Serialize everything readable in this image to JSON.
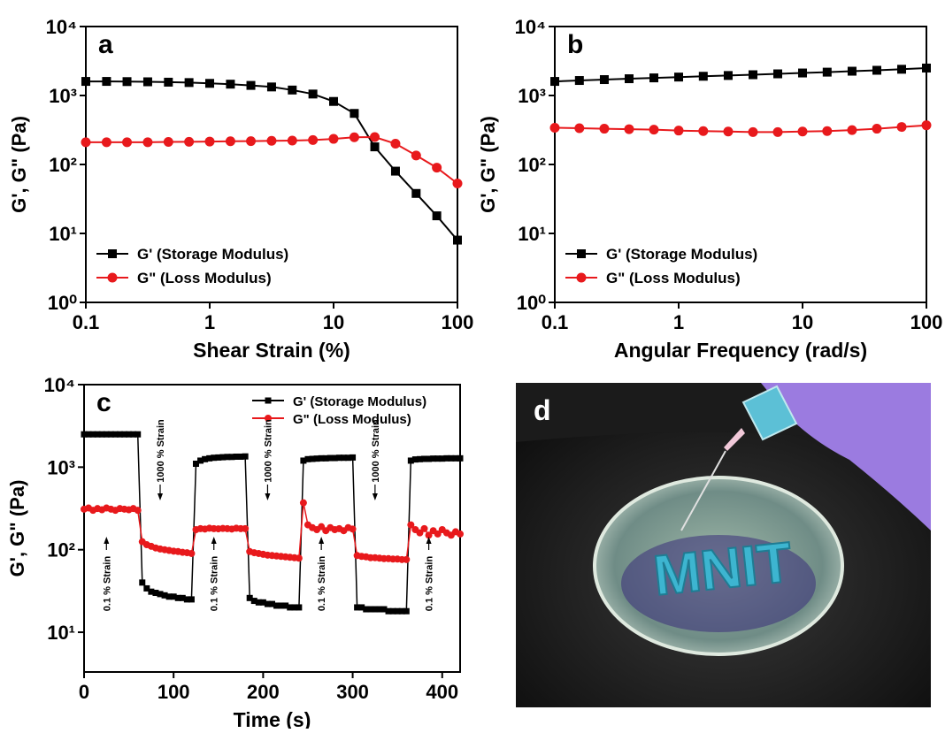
{
  "chart_data": [
    {
      "type": "line",
      "label": "a",
      "xlabel": "Shear Strain (%)",
      "ylabel": "G', G\" (Pa)",
      "xscale": "log",
      "yscale": "log",
      "legend": "lower left",
      "x": [
        0.1,
        0.147,
        0.215,
        0.316,
        0.464,
        0.681,
        1,
        1.47,
        2.15,
        3.16,
        4.64,
        6.81,
        10,
        14.7,
        21.5,
        31.6,
        46.4,
        68.1,
        100
      ],
      "series": [
        {
          "name": "G'  (Storage Modulus)",
          "color": "#000000",
          "marker": "square",
          "values": [
            1600,
            1600,
            1590,
            1580,
            1560,
            1540,
            1500,
            1460,
            1400,
            1330,
            1200,
            1050,
            820,
            550,
            180,
            80,
            38,
            18,
            8
          ]
        },
        {
          "name": "G\" (Loss Modulus)",
          "color": "#e8191c",
          "marker": "circle",
          "values": [
            210,
            210,
            210,
            210,
            212,
            213,
            215,
            217,
            218,
            220,
            222,
            226,
            235,
            248,
            250,
            200,
            135,
            90,
            53
          ]
        }
      ],
      "xlim": [
        0.1,
        100
      ],
      "xticks": [
        0.1,
        1,
        10,
        100
      ],
      "ylim": [
        1,
        10000
      ],
      "yticks": [
        {
          "value": 1,
          "label": "10⁰"
        },
        {
          "value": 10,
          "label": "10¹"
        },
        {
          "value": 100,
          "label": "10²"
        },
        {
          "value": 1000,
          "label": "10³"
        },
        {
          "value": 10000,
          "label": "10⁴"
        }
      ]
    },
    {
      "type": "line",
      "label": "b",
      "xlabel": "Angular Frequency (rad/s)",
      "ylabel": "G', G\" (Pa)",
      "xscale": "log",
      "yscale": "log",
      "legend": "lower left",
      "x": [
        0.1,
        0.158,
        0.251,
        0.398,
        0.631,
        1,
        1.58,
        2.51,
        3.98,
        6.31,
        10,
        15.8,
        25.1,
        39.8,
        63.1,
        100
      ],
      "series": [
        {
          "name": "G'  (Storage Modulus)",
          "color": "#000000",
          "marker": "square",
          "values": [
            1600,
            1650,
            1700,
            1750,
            1800,
            1850,
            1900,
            1950,
            2000,
            2060,
            2120,
            2180,
            2250,
            2320,
            2400,
            2500
          ]
        },
        {
          "name": "G\" (Loss Modulus)",
          "color": "#e8191c",
          "marker": "circle",
          "values": [
            340,
            335,
            330,
            325,
            320,
            310,
            305,
            300,
            295,
            295,
            300,
            305,
            315,
            330,
            350,
            370
          ]
        }
      ],
      "xlim": [
        0.1,
        100
      ],
      "xticks": [
        0.1,
        1,
        10,
        100
      ],
      "ylim": [
        1,
        10000
      ],
      "yticks": [
        {
          "value": 1,
          "label": "10⁰"
        },
        {
          "value": 10,
          "label": "10¹"
        },
        {
          "value": 100,
          "label": "10²"
        },
        {
          "value": 1000,
          "label": "10³"
        },
        {
          "value": 10000,
          "label": "10⁴"
        }
      ]
    },
    {
      "type": "line",
      "label": "c",
      "xlabel": "Time (s)",
      "ylabel": "G', G\" (Pa)",
      "xscale": "linear",
      "yscale": "log",
      "legend": "upper right",
      "x": [
        0,
        5,
        10,
        15,
        20,
        25,
        30,
        35,
        40,
        45,
        50,
        55,
        60,
        65,
        70,
        75,
        80,
        85,
        90,
        95,
        100,
        105,
        110,
        115,
        120,
        125,
        130,
        135,
        140,
        145,
        150,
        155,
        160,
        165,
        170,
        175,
        180,
        185,
        190,
        195,
        200,
        205,
        210,
        215,
        220,
        225,
        230,
        235,
        240,
        245,
        250,
        255,
        260,
        265,
        270,
        275,
        280,
        285,
        290,
        295,
        300,
        305,
        310,
        315,
        320,
        325,
        330,
        335,
        340,
        345,
        350,
        355,
        360,
        365,
        370,
        375,
        380,
        385,
        390,
        395,
        400,
        405,
        410,
        415,
        420
      ],
      "series": [
        {
          "name": "G'  (Storage Modulus)",
          "color": "#000000",
          "marker": "square",
          "values": [
            2500,
            2500,
            2500,
            2500,
            2500,
            2500,
            2500,
            2500,
            2500,
            2500,
            2500,
            2500,
            2500,
            40,
            34,
            31,
            30,
            29,
            28,
            27,
            27,
            26,
            26,
            25,
            25,
            1100,
            1200,
            1250,
            1280,
            1300,
            1310,
            1320,
            1330,
            1330,
            1340,
            1340,
            1350,
            26,
            24,
            23,
            23,
            22,
            22,
            21,
            21,
            21,
            20,
            20,
            20,
            1200,
            1250,
            1260,
            1270,
            1280,
            1280,
            1290,
            1290,
            1300,
            1300,
            1300,
            1310,
            20,
            20,
            19,
            19,
            19,
            19,
            19,
            18,
            18,
            18,
            18,
            18,
            1200,
            1240,
            1250,
            1260,
            1260,
            1270,
            1270,
            1270,
            1280,
            1280,
            1280,
            1280
          ]
        },
        {
          "name": "G\" (Loss Modulus)",
          "color": "#e8191c",
          "marker": "circle",
          "values": [
            310,
            320,
            300,
            315,
            305,
            320,
            310,
            300,
            315,
            310,
            305,
            315,
            300,
            125,
            115,
            110,
            105,
            102,
            100,
            98,
            96,
            95,
            93,
            92,
            90,
            175,
            180,
            178,
            182,
            180,
            179,
            181,
            180,
            178,
            182,
            180,
            180,
            95,
            92,
            90,
            88,
            86,
            85,
            84,
            83,
            82,
            81,
            80,
            79,
            370,
            200,
            185,
            175,
            190,
            170,
            185,
            175,
            180,
            170,
            185,
            178,
            85,
            83,
            82,
            80,
            80,
            79,
            78,
            78,
            77,
            77,
            76,
            76,
            200,
            175,
            160,
            180,
            150,
            170,
            155,
            175,
            160,
            150,
            165,
            155
          ]
        }
      ],
      "annotations": [
        "0.1 % Strain",
        "1000 % Strain",
        "0.1 % Strain",
        "1000 % Strain",
        "0.1 % Strain",
        "1000 % Strain",
        "0.1 % Strain"
      ],
      "xlim": [
        0,
        420
      ],
      "xticks": [
        0,
        100,
        200,
        300,
        400
      ],
      "ylim": [
        3.3,
        10000
      ],
      "yticks": [
        {
          "value": 10,
          "label": "10¹"
        },
        {
          "value": 100,
          "label": "10²"
        },
        {
          "value": 1000,
          "label": "10³"
        },
        {
          "value": 10000,
          "label": "10⁴"
        }
      ]
    }
  ],
  "photo": {
    "label": "d",
    "text": "MNIT"
  }
}
